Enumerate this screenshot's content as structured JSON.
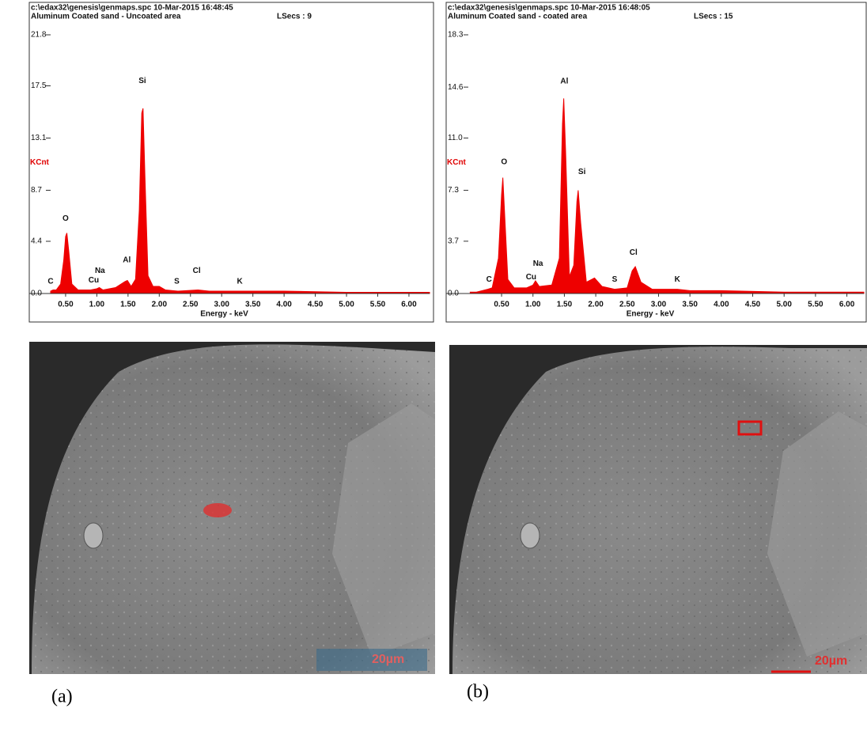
{
  "chart_data": [
    {
      "type": "area",
      "header": "c:\\edax32\\genesis\\genmaps.spc  10-Mar-2015 16:48:45",
      "title": "Aluminum Coated sand - Uncoated area",
      "live_time": "LSecs : 9",
      "y_label": "KCnt",
      "x_label": "Energy - keV",
      "color": "#ee0000",
      "x": [
        0.26,
        0.3,
        0.35,
        0.42,
        0.47,
        0.5,
        0.52,
        0.55,
        0.6,
        0.7,
        0.9,
        1.0,
        1.04,
        1.1,
        1.3,
        1.45,
        1.49,
        1.55,
        1.62,
        1.68,
        1.72,
        1.74,
        1.77,
        1.82,
        1.9,
        2.0,
        2.1,
        2.3,
        2.62,
        2.8,
        3.0,
        3.3,
        3.5,
        4.0,
        5.0,
        6.0,
        6.33
      ],
      "values": [
        0.2,
        0.3,
        0.3,
        0.8,
        2.8,
        4.8,
        5.1,
        3.6,
        0.8,
        0.3,
        0.3,
        0.4,
        0.5,
        0.3,
        0.5,
        1.0,
        1.1,
        0.6,
        1.2,
        7.0,
        15.2,
        15.6,
        10.0,
        1.5,
        0.6,
        0.6,
        0.3,
        0.2,
        0.3,
        0.2,
        0.2,
        0.2,
        0.2,
        0.2,
        0.1,
        0.1,
        0.1
      ],
      "xlim": [
        0.26,
        6.33
      ],
      "ylim": [
        0,
        21.8
      ],
      "xticks": [
        {
          "value": 0.5,
          "label": "0.50"
        },
        {
          "value": 1,
          "label": "1.00"
        },
        {
          "value": 1.5,
          "label": "1.50"
        },
        {
          "value": 2,
          "label": "2.00"
        },
        {
          "value": 2.5,
          "label": "2.50"
        },
        {
          "value": 3,
          "label": "3.00"
        },
        {
          "value": 3.5,
          "label": "3.50"
        },
        {
          "value": 4,
          "label": "4.00"
        },
        {
          "value": 4.5,
          "label": "4.50"
        },
        {
          "value": 5,
          "label": "5.00"
        },
        {
          "value": 5.5,
          "label": "5.50"
        },
        {
          "value": 6,
          "label": "6.00"
        }
      ],
      "yticks": [
        {
          "value": 0,
          "label": "0.0"
        },
        4.4,
        8.7,
        13.1,
        17.5,
        21.8
      ],
      "annotations": [
        {
          "text": "C",
          "x": 0.26,
          "y": 1.0
        },
        {
          "text": "O",
          "x": 0.5,
          "y": 6.3
        },
        {
          "text": "Cu",
          "x": 0.95,
          "y": 1.1
        },
        {
          "text": "Na",
          "x": 1.05,
          "y": 1.9
        },
        {
          "text": "Al",
          "x": 1.48,
          "y": 2.8
        },
        {
          "text": "Si",
          "x": 1.73,
          "y": 17.9
        },
        {
          "text": "S",
          "x": 2.28,
          "y": 1.0
        },
        {
          "text": "Cl",
          "x": 2.6,
          "y": 1.9
        },
        {
          "text": "K",
          "x": 3.29,
          "y": 1.0
        }
      ]
    },
    {
      "type": "area",
      "header": "c:\\edax32\\genesis\\genmaps.spc  10-Mar-2015 16:48:05",
      "title": "Aluminum Coated sand - coated area",
      "live_time": "LSecs : 15",
      "y_label": "KCnt",
      "x_label": "Energy - keV",
      "color": "#ee0000",
      "x": [
        0,
        0.1,
        0.28,
        0.35,
        0.45,
        0.5,
        0.52,
        0.55,
        0.6,
        0.7,
        0.9,
        1.0,
        1.04,
        1.1,
        1.3,
        1.42,
        1.47,
        1.49,
        1.52,
        1.58,
        1.65,
        1.7,
        1.72,
        1.76,
        1.85,
        1.98,
        2.1,
        2.3,
        2.5,
        2.58,
        2.63,
        2.72,
        2.9,
        3.3,
        3.5,
        4.0,
        5.0,
        6.0,
        6.27
      ],
      "values": [
        0.1,
        0.1,
        0.3,
        0.4,
        2.5,
        7.0,
        8.2,
        5.5,
        1.0,
        0.4,
        0.4,
        0.6,
        0.9,
        0.5,
        0.6,
        2.5,
        12.0,
        13.8,
        10.0,
        1.2,
        2.0,
        6.5,
        7.3,
        5.0,
        0.8,
        1.1,
        0.5,
        0.3,
        0.4,
        1.6,
        1.9,
        0.8,
        0.3,
        0.3,
        0.2,
        0.2,
        0.1,
        0.1,
        0.1
      ],
      "xlim": [
        -0.03,
        6.27
      ],
      "ylim": [
        0,
        18.3
      ],
      "xticks": [
        {
          "value": 0.5,
          "label": "0.50"
        },
        {
          "value": 1,
          "label": "1.00"
        },
        {
          "value": 1.5,
          "label": "1.50"
        },
        {
          "value": 2,
          "label": "2.00"
        },
        {
          "value": 2.5,
          "label": "2.50"
        },
        {
          "value": 3,
          "label": "3.00"
        },
        {
          "value": 3.5,
          "label": "3.50"
        },
        {
          "value": 4,
          "label": "4.00"
        },
        {
          "value": 4.5,
          "label": "4.50"
        },
        {
          "value": 5,
          "label": "5.00"
        },
        {
          "value": 5.5,
          "label": "5.50"
        },
        {
          "value": 6,
          "label": "6.00"
        }
      ],
      "yticks": [
        {
          "value": 0,
          "label": "0.0"
        },
        3.7,
        7.3,
        {
          "value": 11,
          "label": "11.0"
        },
        14.6,
        18.3
      ],
      "annotations": [
        {
          "text": "C",
          "x": 0.3,
          "y": 1.0
        },
        {
          "text": "O",
          "x": 0.54,
          "y": 9.3
        },
        {
          "text": "Cu",
          "x": 0.97,
          "y": 1.15
        },
        {
          "text": "Na",
          "x": 1.08,
          "y": 2.1
        },
        {
          "text": "Al",
          "x": 1.5,
          "y": 15.0
        },
        {
          "text": "Si",
          "x": 1.78,
          "y": 8.6
        },
        {
          "text": "S",
          "x": 2.3,
          "y": 1.0
        },
        {
          "text": "Cl",
          "x": 2.6,
          "y": 2.9
        },
        {
          "text": "K",
          "x": 3.3,
          "y": 1.0
        }
      ]
    }
  ],
  "images": [
    {
      "label": "(a)",
      "scale_bar": "20µm"
    },
    {
      "label": "(b)",
      "scale_bar": "20µm"
    }
  ]
}
